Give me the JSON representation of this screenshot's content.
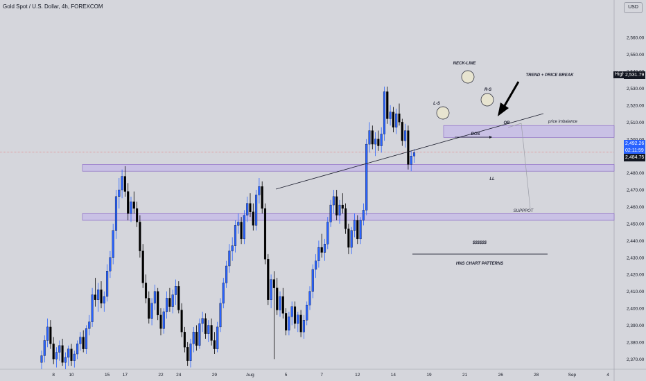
{
  "header": {
    "symbol_title": "Gold Spot / U.S. Dollar, 4h, FOREXCOM",
    "currency_button": "USD"
  },
  "price_scale": {
    "high_label": "High",
    "high_value": "2,531.79",
    "current_price": "2,492.26",
    "countdown": "02:11:59",
    "low_marker": "2,484.75"
  },
  "annotations": {
    "neck_line": "NECK-LINE",
    "left_shoulder": "L-S",
    "right_shoulder": "R-S",
    "trend_break": "TREND + PRICE BREAK",
    "ob": "OB",
    "bos": "BOS",
    "ll": "LL",
    "liquidity": "$$$$$$",
    "pattern_name": "HNS CHART PATTERNS"
  },
  "zones": [
    {
      "name": "price-imbalance-zone",
      "label": "price imbalance",
      "low": 2501,
      "high": 2508
    },
    {
      "name": "retest-zone",
      "label": "",
      "low": 2481,
      "high": 2485
    },
    {
      "name": "support-zone",
      "label": "SUPPPOT",
      "low": 2452,
      "high": 2456
    }
  ],
  "colors": {
    "bull": "#2962ff",
    "bear": "#000000",
    "zone_fill": "#c8bfe7",
    "zone_border": "#7e57c2",
    "price_badge": "#2962ff",
    "background": "#d5d6dc"
  },
  "chart_data": {
    "type": "candlestick",
    "timeframe": "4h",
    "y_ticks": [
      "2,370.00",
      "2,380.00",
      "2,390.00",
      "2,400.00",
      "2,410.00",
      "2,420.00",
      "2,430.00",
      "2,440.00",
      "2,450.00",
      "2,460.00",
      "2,470.00",
      "2,480.00",
      "2,490.00",
      "2,500.00",
      "2,510.00",
      "2,520.00",
      "2,530.00",
      "2,540.00",
      "2,550.00",
      "2,560.00"
    ],
    "ylim": [
      2364,
      2574
    ],
    "x_ticks": [
      {
        "label": "8",
        "bar": 4
      },
      {
        "label": "10",
        "bar": 10
      },
      {
        "label": "15",
        "bar": 22
      },
      {
        "label": "17",
        "bar": 28
      },
      {
        "label": "22",
        "bar": 40
      },
      {
        "label": "24",
        "bar": 46
      },
      {
        "label": "29",
        "bar": 58
      },
      {
        "label": "Aug",
        "bar": 70
      },
      {
        "label": "5",
        "bar": 82
      },
      {
        "label": "7",
        "bar": 94
      },
      {
        "label": "12",
        "bar": 106
      },
      {
        "label": "14",
        "bar": 118
      },
      {
        "label": "19",
        "bar": 130
      },
      {
        "label": "21",
        "bar": 142
      },
      {
        "label": "26",
        "bar": 154
      },
      {
        "label": "28",
        "bar": 166
      },
      {
        "label": "Sep",
        "bar": 178
      },
      {
        "label": "4",
        "bar": 190
      }
    ],
    "bars_visible": 196,
    "ohlc": [
      [
        2368,
        2375,
        2364,
        2372
      ],
      [
        2372,
        2384,
        2368,
        2381
      ],
      [
        2381,
        2394,
        2377,
        2389
      ],
      [
        2389,
        2393,
        2376,
        2379
      ],
      [
        2379,
        2383,
        2367,
        2370
      ],
      [
        2370,
        2377,
        2365,
        2374
      ],
      [
        2374,
        2381,
        2369,
        2378
      ],
      [
        2378,
        2382,
        2366,
        2368
      ],
      [
        2368,
        2374,
        2364,
        2371
      ],
      [
        2371,
        2378,
        2366,
        2376
      ],
      [
        2376,
        2379,
        2366,
        2369
      ],
      [
        2369,
        2375,
        2365,
        2373
      ],
      [
        2373,
        2381,
        2370,
        2379
      ],
      [
        2379,
        2386,
        2375,
        2383
      ],
      [
        2383,
        2387,
        2374,
        2376
      ],
      [
        2376,
        2390,
        2373,
        2388
      ],
      [
        2388,
        2396,
        2384,
        2392
      ],
      [
        2392,
        2412,
        2389,
        2408
      ],
      [
        2408,
        2418,
        2401,
        2405
      ],
      [
        2405,
        2415,
        2398,
        2411
      ],
      [
        2411,
        2416,
        2400,
        2403
      ],
      [
        2403,
        2410,
        2398,
        2407
      ],
      [
        2407,
        2426,
        2404,
        2422
      ],
      [
        2422,
        2434,
        2418,
        2430
      ],
      [
        2430,
        2450,
        2426,
        2446
      ],
      [
        2446,
        2470,
        2441,
        2466
      ],
      [
        2466,
        2477,
        2459,
        2470
      ],
      [
        2470,
        2482,
        2465,
        2478
      ],
      [
        2478,
        2484,
        2466,
        2469
      ],
      [
        2469,
        2474,
        2452,
        2456
      ],
      [
        2456,
        2466,
        2451,
        2463
      ],
      [
        2463,
        2469,
        2456,
        2459
      ],
      [
        2459,
        2463,
        2448,
        2451
      ],
      [
        2451,
        2455,
        2430,
        2434
      ],
      [
        2434,
        2438,
        2412,
        2415
      ],
      [
        2415,
        2420,
        2403,
        2406
      ],
      [
        2406,
        2410,
        2391,
        2394
      ],
      [
        2394,
        2406,
        2390,
        2403
      ],
      [
        2403,
        2414,
        2399,
        2410
      ],
      [
        2410,
        2412,
        2393,
        2396
      ],
      [
        2396,
        2400,
        2384,
        2388
      ],
      [
        2388,
        2400,
        2385,
        2398
      ],
      [
        2398,
        2410,
        2394,
        2406
      ],
      [
        2406,
        2412,
        2398,
        2401
      ],
      [
        2401,
        2411,
        2397,
        2408
      ],
      [
        2408,
        2417,
        2402,
        2413
      ],
      [
        2413,
        2416,
        2397,
        2399
      ],
      [
        2399,
        2403,
        2383,
        2386
      ],
      [
        2386,
        2389,
        2374,
        2377
      ],
      [
        2377,
        2380,
        2366,
        2369
      ],
      [
        2369,
        2382,
        2365,
        2379
      ],
      [
        2379,
        2389,
        2374,
        2386
      ],
      [
        2386,
        2390,
        2375,
        2378
      ],
      [
        2378,
        2394,
        2376,
        2391
      ],
      [
        2391,
        2398,
        2386,
        2394
      ],
      [
        2394,
        2397,
        2382,
        2385
      ],
      [
        2385,
        2393,
        2380,
        2390
      ],
      [
        2390,
        2394,
        2378,
        2381
      ],
      [
        2381,
        2386,
        2373,
        2376
      ],
      [
        2376,
        2392,
        2374,
        2389
      ],
      [
        2389,
        2406,
        2386,
        2403
      ],
      [
        2403,
        2418,
        2400,
        2415
      ],
      [
        2415,
        2428,
        2412,
        2425
      ],
      [
        2425,
        2438,
        2421,
        2434
      ],
      [
        2434,
        2442,
        2428,
        2437
      ],
      [
        2437,
        2452,
        2433,
        2449
      ],
      [
        2449,
        2456,
        2444,
        2451
      ],
      [
        2451,
        2454,
        2438,
        2441
      ],
      [
        2441,
        2458,
        2438,
        2455
      ],
      [
        2455,
        2466,
        2451,
        2462
      ],
      [
        2462,
        2468,
        2454,
        2457
      ],
      [
        2457,
        2462,
        2446,
        2449
      ],
      [
        2449,
        2470,
        2446,
        2467
      ],
      [
        2467,
        2477,
        2462,
        2472
      ],
      [
        2472,
        2475,
        2456,
        2459
      ],
      [
        2459,
        2462,
        2426,
        2429
      ],
      [
        2429,
        2432,
        2402,
        2405
      ],
      [
        2405,
        2420,
        2400,
        2417
      ],
      [
        2417,
        2422,
        2370,
        2412
      ],
      [
        2412,
        2418,
        2396,
        2399
      ],
      [
        2399,
        2410,
        2395,
        2407
      ],
      [
        2407,
        2412,
        2394,
        2397
      ],
      [
        2397,
        2400,
        2384,
        2387
      ],
      [
        2387,
        2398,
        2384,
        2395
      ],
      [
        2395,
        2404,
        2390,
        2401
      ],
      [
        2401,
        2404,
        2388,
        2391
      ],
      [
        2391,
        2398,
        2386,
        2396
      ],
      [
        2396,
        2399,
        2383,
        2386
      ],
      [
        2386,
        2396,
        2382,
        2393
      ],
      [
        2393,
        2404,
        2390,
        2402
      ],
      [
        2402,
        2413,
        2399,
        2410
      ],
      [
        2410,
        2426,
        2406,
        2423
      ],
      [
        2423,
        2432,
        2418,
        2428
      ],
      [
        2428,
        2440,
        2424,
        2436
      ],
      [
        2436,
        2444,
        2430,
        2433
      ],
      [
        2433,
        2441,
        2428,
        2438
      ],
      [
        2438,
        2454,
        2435,
        2451
      ],
      [
        2451,
        2464,
        2448,
        2461
      ],
      [
        2461,
        2470,
        2456,
        2466
      ],
      [
        2466,
        2470,
        2452,
        2455
      ],
      [
        2455,
        2464,
        2450,
        2461
      ],
      [
        2461,
        2468,
        2456,
        2459
      ],
      [
        2459,
        2462,
        2444,
        2447
      ],
      [
        2447,
        2450,
        2432,
        2436
      ],
      [
        2436,
        2448,
        2432,
        2446
      ],
      [
        2446,
        2456,
        2442,
        2452
      ],
      [
        2452,
        2455,
        2438,
        2441
      ],
      [
        2441,
        2454,
        2438,
        2452
      ],
      [
        2452,
        2462,
        2449,
        2458
      ],
      [
        2458,
        2500,
        2455,
        2497
      ],
      [
        2497,
        2510,
        2492,
        2505
      ],
      [
        2505,
        2508,
        2494,
        2497
      ],
      [
        2497,
        2504,
        2490,
        2500
      ],
      [
        2500,
        2505,
        2493,
        2496
      ],
      [
        2496,
        2507,
        2492,
        2503
      ],
      [
        2503,
        2531,
        2499,
        2528
      ],
      [
        2528,
        2531,
        2509,
        2512
      ],
      [
        2512,
        2520,
        2508,
        2516
      ],
      [
        2516,
        2519,
        2504,
        2507
      ],
      [
        2507,
        2518,
        2503,
        2515
      ],
      [
        2515,
        2521,
        2508,
        2510
      ],
      [
        2510,
        2512,
        2496,
        2499
      ],
      [
        2499,
        2509,
        2495,
        2505
      ],
      [
        2505,
        2508,
        2482,
        2485
      ],
      [
        2485,
        2493,
        2481,
        2490
      ],
      [
        2490,
        2494,
        2486,
        2492
      ]
    ],
    "trendline_points": [
      [
        2470,
        0
      ],
      [
        2510,
        1
      ]
    ],
    "liquidity_level": 2432
  }
}
